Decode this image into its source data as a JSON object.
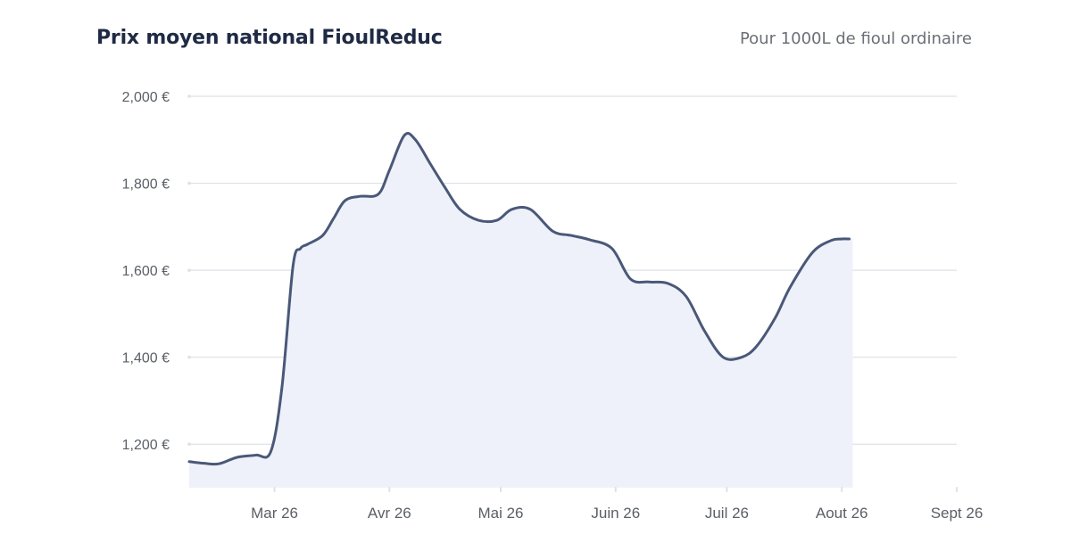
{
  "header": {
    "title": "Prix moyen national FioulReduc",
    "subtitle": "Pour 1000L de fioul ordinaire"
  },
  "colors": {
    "line": "#4a5878",
    "area": "#eef1f9",
    "grid": "#dde1e6",
    "text": "#5a5f66"
  },
  "chart_data": {
    "type": "area",
    "title": "Prix moyen national FioulReduc",
    "subtitle": "Pour 1000L de fioul ordinaire",
    "xlabel": "",
    "ylabel": "",
    "ylim": [
      1100,
      2000
    ],
    "xlim": [
      "2026-02-06",
      "2026-09-01"
    ],
    "yticks": [
      1200,
      1400,
      1600,
      1800,
      2000
    ],
    "ytick_labels": [
      "1,200 €",
      "1,400 €",
      "1,600 €",
      "1,800 €",
      "2,000 €"
    ],
    "xticks": [
      "2026-03-01",
      "2026-04-01",
      "2026-05-01",
      "2026-06-01",
      "2026-07-01",
      "2026-08-01",
      "2026-09-01"
    ],
    "xtick_labels": [
      "Mar 26",
      "Avr 26",
      "Mai 26",
      "Juin 26",
      "Juil 26",
      "Aout 26",
      "Sept 26"
    ],
    "grid": true,
    "series": [
      {
        "x": [
          "2026-02-06",
          "2026-02-10",
          "2026-02-14",
          "2026-02-19",
          "2026-02-24",
          "2026-02-28",
          "2026-03-03",
          "2026-03-06",
          "2026-03-08",
          "2026-03-10",
          "2026-03-14",
          "2026-03-17",
          "2026-03-20",
          "2026-03-24",
          "2026-03-29",
          "2026-04-01",
          "2026-04-05",
          "2026-04-08",
          "2026-04-12",
          "2026-04-16",
          "2026-04-20",
          "2026-04-25",
          "2026-04-30",
          "2026-05-04",
          "2026-05-09",
          "2026-05-15",
          "2026-05-20",
          "2026-05-25",
          "2026-05-31",
          "2026-06-05",
          "2026-06-10",
          "2026-06-15",
          "2026-06-20",
          "2026-06-25",
          "2026-06-30",
          "2026-07-05",
          "2026-07-09",
          "2026-07-14",
          "2026-07-18",
          "2026-07-24",
          "2026-07-29",
          "2026-08-01",
          "2026-08-03"
        ],
        "values": [
          1160,
          1156,
          1155,
          1170,
          1175,
          1183,
          1330,
          1610,
          1650,
          1660,
          1680,
          1720,
          1760,
          1770,
          1775,
          1830,
          1910,
          1900,
          1845,
          1790,
          1740,
          1715,
          1715,
          1740,
          1740,
          1690,
          1680,
          1670,
          1650,
          1580,
          1573,
          1570,
          1540,
          1460,
          1400,
          1400,
          1425,
          1490,
          1560,
          1640,
          1668,
          1672,
          1672
        ]
      }
    ]
  }
}
